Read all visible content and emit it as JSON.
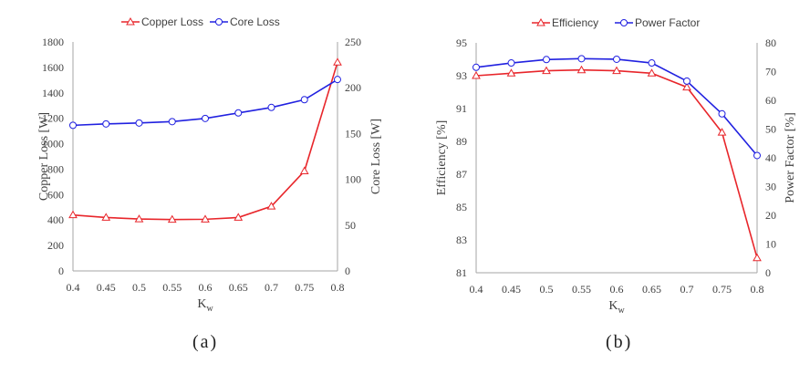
{
  "captions": [
    "(a)",
    "(b)"
  ],
  "colors": {
    "series_red": "#e8262b",
    "series_blue": "#2121e0",
    "axis": "#a6a6a6"
  },
  "chart_data": [
    {
      "type": "line",
      "xlabel": "K",
      "xlabel_sub": "w",
      "x": [
        0.4,
        0.45,
        0.5,
        0.55,
        0.6,
        0.65,
        0.7,
        0.75,
        0.8
      ],
      "xlim": [
        0.4,
        0.8
      ],
      "xticks": [
        "0.4",
        "0.45",
        "0.5",
        "0.55",
        "0.6",
        "0.65",
        "0.7",
        "0.75",
        "0.8"
      ],
      "ylabel_left": "Copper Loss [W]",
      "ylim_left": [
        0,
        1800
      ],
      "yticks_left": [
        "0",
        "200",
        "400",
        "600",
        "800",
        "1000",
        "1200",
        "1400",
        "1600",
        "1800"
      ],
      "ylabel_right": "Core Loss [W]",
      "ylim_right": [
        0,
        250
      ],
      "yticks_right": [
        "0",
        "50",
        "100",
        "150",
        "200",
        "250"
      ],
      "legend_position": "top",
      "grid": false,
      "series": [
        {
          "name": "Copper Loss",
          "axis": "left",
          "color": "#e8262b",
          "marker": "triangle",
          "values": [
            440,
            420,
            408,
            404,
            406,
            420,
            508,
            785,
            1640
          ]
        },
        {
          "name": "Core Loss",
          "axis": "right",
          "color": "#2121e0",
          "marker": "circle",
          "values": [
            159,
            160.5,
            161.5,
            163,
            166.5,
            172.5,
            178.5,
            187,
            209
          ]
        }
      ]
    },
    {
      "type": "line",
      "xlabel": "K",
      "xlabel_sub": "w",
      "x": [
        0.4,
        0.45,
        0.5,
        0.55,
        0.6,
        0.65,
        0.7,
        0.75,
        0.8
      ],
      "xlim": [
        0.4,
        0.8
      ],
      "xticks": [
        "0.4",
        "0.45",
        "0.5",
        "0.55",
        "0.6",
        "0.65",
        "0.7",
        "0.75",
        "0.8"
      ],
      "ylabel_left": "Efficiency [%]",
      "ylim_left": [
        81,
        95
      ],
      "yticks_left": [
        "81",
        "83",
        "85",
        "87",
        "89",
        "91",
        "93",
        "95"
      ],
      "ylabel_right": "Power Factor [%]",
      "ylim_right": [
        0,
        80
      ],
      "yticks_right": [
        "0",
        "10",
        "20",
        "30",
        "40",
        "50",
        "60",
        "70",
        "80"
      ],
      "legend_position": "top",
      "grid": false,
      "series": [
        {
          "name": "Efficiency",
          "axis": "left",
          "color": "#e8262b",
          "marker": "triangle",
          "values": [
            93.0,
            93.15,
            93.3,
            93.35,
            93.3,
            93.15,
            92.3,
            89.55,
            81.9
          ]
        },
        {
          "name": "Power Factor",
          "axis": "right",
          "color": "#2121e0",
          "marker": "circle",
          "values": [
            71.5,
            73,
            74.2,
            74.5,
            74.3,
            73,
            66.7,
            55.3,
            40.8
          ]
        }
      ]
    }
  ]
}
